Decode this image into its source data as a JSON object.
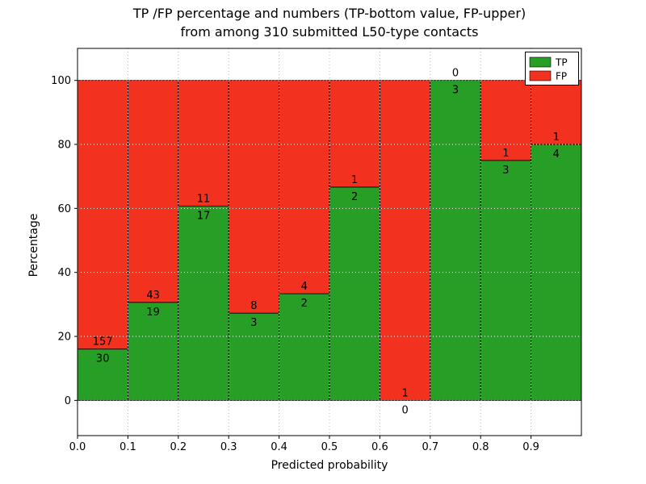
{
  "chart_data": {
    "type": "bar",
    "stacked": true,
    "title_line1": "TP /FP percentage and numbers (TP-bottom value, FP-upper)",
    "title_line2": "from among 310 submitted L50-type contacts",
    "xlabel": "Predicted probability",
    "ylabel": "Percentage",
    "xlim": [
      0.0,
      1.0
    ],
    "ylim": [
      -11,
      110
    ],
    "xticks": [
      0.0,
      0.1,
      0.2,
      0.3,
      0.4,
      0.5,
      0.6,
      0.7,
      0.8,
      0.9
    ],
    "xtick_labels": [
      "0.0",
      "0.1",
      "0.2",
      "0.3",
      "0.4",
      "0.5",
      "0.6",
      "0.7",
      "0.8",
      "0.9"
    ],
    "yticks": [
      0,
      20,
      40,
      60,
      80,
      100
    ],
    "ytick_labels": [
      "0",
      "20",
      "40",
      "60",
      "80",
      "100"
    ],
    "bin_edges": [
      0.0,
      0.1,
      0.2,
      0.3,
      0.4,
      0.5,
      0.6,
      0.7,
      0.8,
      0.9,
      1.0
    ],
    "series": [
      {
        "name": "TP",
        "color": "#279f27",
        "values": [
          30,
          19,
          17,
          3,
          2,
          2,
          0,
          3,
          3,
          4
        ]
      },
      {
        "name": "FP",
        "color": "#f2321f",
        "values": [
          157,
          43,
          11,
          8,
          4,
          1,
          1,
          0,
          1,
          1
        ]
      }
    ],
    "tp_percentages": [
      16.0,
      30.6,
      60.7,
      27.3,
      33.3,
      66.7,
      0.0,
      100.0,
      75.0,
      80.0
    ],
    "total_contacts": 310,
    "legend": {
      "position": "upper right",
      "entries": [
        "TP",
        "FP"
      ]
    },
    "grid": {
      "style": "dotted",
      "color_over_bars": "#ffffff",
      "color_outside": "#b3b3b3"
    },
    "bar_edge_color": "#000000"
  }
}
